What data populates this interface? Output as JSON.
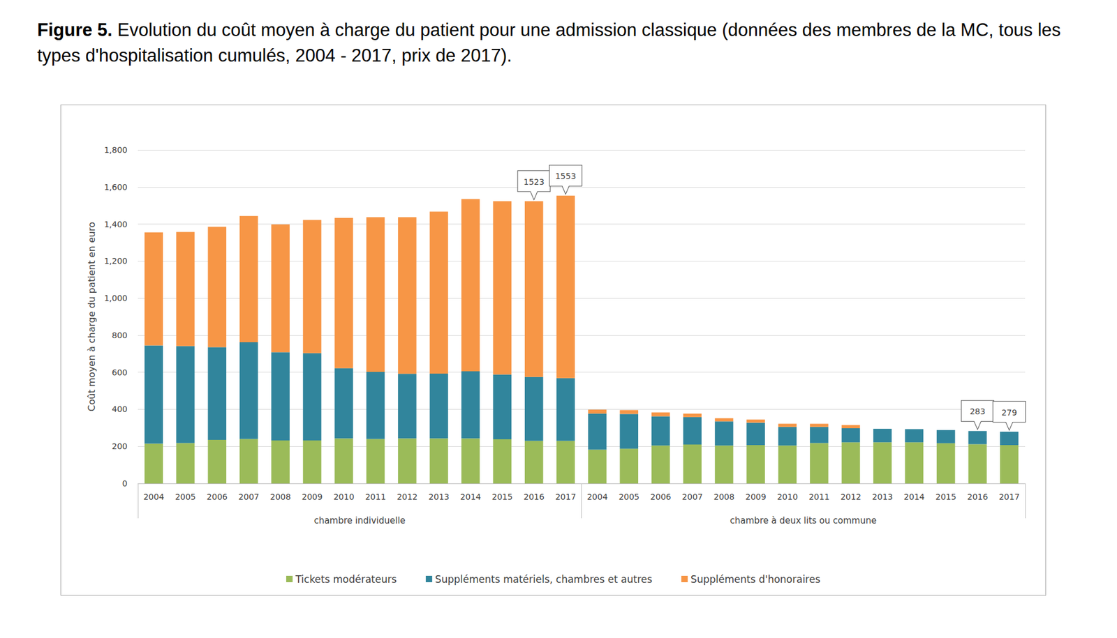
{
  "chart_data": {
    "type": "bar",
    "title": "Figure 5. Evolution du coût moyen à charge du patient pour une admission classique (données des membres de la MC, tous les types d'hospitalisation cumulés, 2004 - 2017, prix de 2017).",
    "y_label": "Coût moyen à charge du patient en euro",
    "groups": [
      {
        "label": "chambre individuelle",
        "categories": [
          "2004",
          "2005",
          "2006",
          "2007",
          "2008",
          "2009",
          "2010",
          "2011",
          "2012",
          "2013",
          "2014",
          "2015",
          "2016",
          "2017"
        ]
      },
      {
        "label": "chambre à deux lits ou commune",
        "categories": [
          "2004",
          "2005",
          "2006",
          "2007",
          "2008",
          "2009",
          "2010",
          "2011",
          "2012",
          "2013",
          "2014",
          "2015",
          "2016",
          "2017"
        ]
      }
    ],
    "series": [
      {
        "name": "Tickets modérateurs",
        "color": "#9bbb59",
        "values": [
          215,
          218,
          235,
          240,
          232,
          232,
          243,
          240,
          243,
          243,
          243,
          238,
          230,
          230,
          183,
          187,
          205,
          210,
          205,
          207,
          205,
          218,
          222,
          222,
          222,
          217,
          212,
          207
        ]
      },
      {
        "name": "Suppléments matériels, chambres et autres",
        "color": "#31859c",
        "values": [
          530,
          524,
          500,
          522,
          476,
          471,
          379,
          362,
          349,
          350,
          362,
          350,
          345,
          338,
          194,
          188,
          157,
          148,
          130,
          121,
          100,
          87,
          76,
          73,
          71,
          71,
          71,
          72
        ]
      },
      {
        "name": "Suppléments d'honoraires",
        "color": "#f79646",
        "values": [
          610,
          615,
          650,
          681,
          690,
          719,
          811,
          835,
          845,
          874,
          930,
          935,
          948,
          985,
          21,
          21,
          21,
          19,
          17,
          17,
          17,
          17,
          17,
          0,
          0,
          0,
          0,
          0
        ]
      }
    ],
    "stacked": true,
    "ylim": [
      0,
      1800
    ],
    "yticks": [
      0,
      200,
      400,
      600,
      800,
      1000,
      1200,
      1400,
      1600,
      1800
    ],
    "grid": true,
    "legend": "bottom",
    "annotations": [
      {
        "text": "1523",
        "group": "chambre individuelle",
        "category": "2016",
        "y": 1523
      },
      {
        "text": "1553",
        "group": "chambre individuelle",
        "category": "2017",
        "y": 1553
      },
      {
        "text": "283",
        "group": "chambre à deux lits ou commune",
        "category": "2016",
        "y": 283
      },
      {
        "text": "279",
        "group": "chambre à deux lits ou commune",
        "category": "2017",
        "y": 279
      }
    ]
  }
}
